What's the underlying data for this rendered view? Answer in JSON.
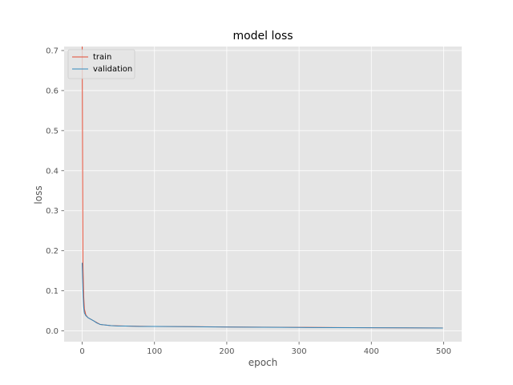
{
  "chart_data": {
    "type": "line",
    "title": "model loss",
    "xlabel": "epoch",
    "ylabel": "loss",
    "xlim": [
      -25,
      525
    ],
    "ylim": [
      -0.027,
      0.71
    ],
    "xticks": [
      0,
      100,
      200,
      300,
      400,
      500
    ],
    "yticks": [
      0.0,
      0.1,
      0.2,
      0.3,
      0.4,
      0.5,
      0.6,
      0.7
    ],
    "xtick_labels": [
      "0",
      "100",
      "200",
      "300",
      "400",
      "500"
    ],
    "ytick_labels": [
      "0.0",
      "0.1",
      "0.2",
      "0.3",
      "0.4",
      "0.5",
      "0.6",
      "0.7"
    ],
    "grid": true,
    "legend_position": "upper-left",
    "series": [
      {
        "name": "train",
        "color": "#e24a33",
        "x": [
          0,
          1,
          2,
          3,
          5,
          8,
          12,
          16,
          20,
          25,
          30,
          40,
          50,
          60,
          80,
          100,
          150,
          200,
          250,
          300,
          350,
          400,
          450,
          499
        ],
        "y": [
          0.71,
          0.17,
          0.09,
          0.055,
          0.04,
          0.033,
          0.029,
          0.025,
          0.021,
          0.016,
          0.015,
          0.013,
          0.0125,
          0.012,
          0.0115,
          0.011,
          0.0105,
          0.0098,
          0.0092,
          0.0088,
          0.0082,
          0.0078,
          0.0075,
          0.0072
        ]
      },
      {
        "name": "validation",
        "color": "#348abd",
        "x": [
          0,
          1,
          2,
          3,
          5,
          8,
          12,
          16,
          20,
          25,
          30,
          40,
          50,
          60,
          80,
          100,
          150,
          200,
          250,
          300,
          350,
          400,
          450,
          499
        ],
        "y": [
          0.17,
          0.1,
          0.06,
          0.045,
          0.038,
          0.033,
          0.029,
          0.025,
          0.02,
          0.016,
          0.015,
          0.013,
          0.012,
          0.012,
          0.011,
          0.011,
          0.0105,
          0.0095,
          0.009,
          0.0085,
          0.008,
          0.0078,
          0.0075,
          0.007
        ]
      }
    ]
  }
}
